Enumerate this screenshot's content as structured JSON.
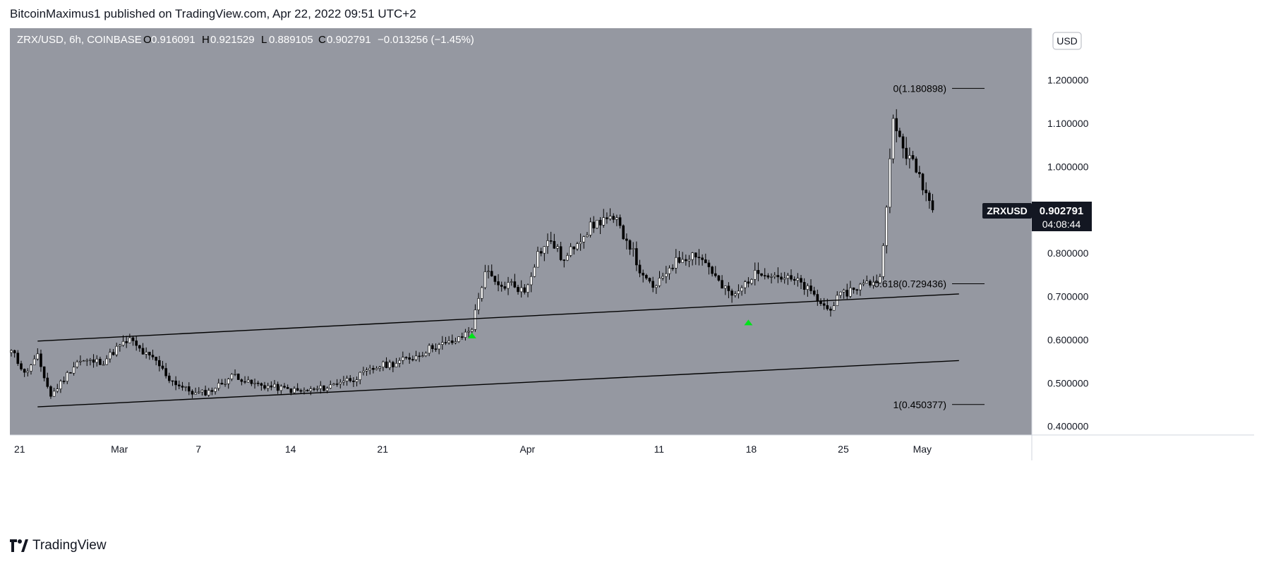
{
  "header": {
    "text": "BitcoinMaximus1 published on TradingView.com, Apr 22, 2022 09:51 UTC+2"
  },
  "legend": {
    "symbol": "ZRX/USD, 6h, COINBASE",
    "o_label": "O",
    "o_value": "0.916091",
    "h_label": "H",
    "h_value": "0.921529",
    "l_label": "L",
    "l_value": "0.889105",
    "c_label": "C",
    "c_value": "0.902791",
    "change": "−0.013256 (−1.45%)"
  },
  "currency_button": "USD",
  "price_tag": {
    "symbol": "ZRXUSD",
    "price": "0.902791",
    "countdown": "04:08:44"
  },
  "footer": {
    "brand": "TradingView"
  },
  "colors": {
    "plot_bg": "#9598a1",
    "axis_bg": "#ffffff",
    "candle_up": "#ffffff",
    "candle_down": "#000000",
    "trendline": "#000000",
    "arrow": "#00e21a",
    "tag_bg": "#131722"
  },
  "chart_data": {
    "type": "candlestick",
    "title": "ZRX/USD, 6h, COINBASE",
    "ylim": [
      0.38,
      1.32
    ],
    "y_ticks": [
      "1.200000",
      "1.100000",
      "1.000000",
      "0.800000",
      "0.700000",
      "0.600000",
      "0.500000",
      "0.400000"
    ],
    "x_ticks": [
      "21",
      "Mar",
      "7",
      "14",
      "21",
      "Apr",
      "11",
      "18",
      "25",
      "May"
    ],
    "fib_levels": [
      {
        "label": "0(1.180898)",
        "value": 1.180898
      },
      {
        "label": "0.618(0.729436)",
        "value": 0.729436
      },
      {
        "label": "1(0.450377)",
        "value": 0.450377
      }
    ],
    "channel": {
      "upper": {
        "start": [
          "Feb 23",
          0.597
        ],
        "end": [
          "May 4",
          0.706
        ]
      },
      "lower": {
        "start": [
          "Feb 23",
          0.445
        ],
        "end": [
          "May 4",
          0.552
        ]
      }
    },
    "arrows": [
      {
        "x": "Mar 28",
        "price": 0.61
      },
      {
        "x": "Apr 18",
        "price": 0.64
      }
    ],
    "price_path": [
      [
        "Feb 20",
        0.57
      ],
      [
        "Feb 21",
        0.58
      ],
      [
        "Feb 22",
        0.52
      ],
      [
        "Feb 23",
        0.56
      ],
      [
        "Feb 24",
        0.47
      ],
      [
        "Feb 25",
        0.51
      ],
      [
        "Feb 26",
        0.55
      ],
      [
        "Feb 28",
        0.55
      ],
      [
        "Mar 1",
        0.58
      ],
      [
        "Mar 2",
        0.6
      ],
      [
        "Mar 3",
        0.57
      ],
      [
        "Mar 4",
        0.55
      ],
      [
        "Mar 5",
        0.51
      ],
      [
        "Mar 6",
        0.49
      ],
      [
        "Mar 7",
        0.475
      ],
      [
        "Mar 8",
        0.48
      ],
      [
        "Mar 9",
        0.5
      ],
      [
        "Mar 10",
        0.52
      ],
      [
        "Mar 11",
        0.5
      ],
      [
        "Mar 12",
        0.495
      ],
      [
        "Mar 13",
        0.49
      ],
      [
        "Mar 14",
        0.485
      ],
      [
        "Mar 15",
        0.48
      ],
      [
        "Mar 16",
        0.485
      ],
      [
        "Mar 17",
        0.49
      ],
      [
        "Mar 18",
        0.505
      ],
      [
        "Mar 19",
        0.51
      ],
      [
        "Mar 20",
        0.525
      ],
      [
        "Mar 21",
        0.54
      ],
      [
        "Mar 22",
        0.545
      ],
      [
        "Mar 23",
        0.555
      ],
      [
        "Mar 24",
        0.565
      ],
      [
        "Mar 25",
        0.585
      ],
      [
        "Mar 26",
        0.59
      ],
      [
        "Mar 27",
        0.6
      ],
      [
        "Mar 28",
        0.63
      ],
      [
        "Mar 29",
        0.76
      ],
      [
        "Mar 30",
        0.72
      ],
      [
        "Mar 31",
        0.73
      ],
      [
        "Apr 1",
        0.71
      ],
      [
        "Apr 2",
        0.8
      ],
      [
        "Apr 3",
        0.83
      ],
      [
        "Apr 4",
        0.78
      ],
      [
        "Apr 5",
        0.83
      ],
      [
        "Apr 6",
        0.86
      ],
      [
        "Apr 7",
        0.88
      ],
      [
        "Apr 8",
        0.87
      ],
      [
        "Apr 9",
        0.82
      ],
      [
        "Apr 10",
        0.74
      ],
      [
        "Apr 11",
        0.72
      ],
      [
        "Apr 12",
        0.77
      ],
      [
        "Apr 13",
        0.79
      ],
      [
        "Apr 14",
        0.8
      ],
      [
        "Apr 15",
        0.77
      ],
      [
        "Apr 16",
        0.72
      ],
      [
        "Apr 17",
        0.7
      ],
      [
        "Apr 18",
        0.74
      ],
      [
        "Apr 19",
        0.76
      ],
      [
        "Apr 20",
        0.75
      ],
      [
        "Apr 21",
        0.74
      ],
      [
        "Apr 22",
        0.73
      ],
      [
        "Apr 23",
        0.7
      ],
      [
        "Apr 24",
        0.67
      ],
      [
        "Apr 25",
        0.7
      ],
      [
        "Apr 26",
        0.72
      ],
      [
        "Apr 27",
        0.73
      ],
      [
        "Apr 28",
        0.74
      ],
      [
        "Apr 29",
        1.1
      ],
      [
        "Apr 30",
        1.03
      ],
      [
        "May 1",
        0.98
      ],
      [
        "May 2",
        0.9
      ]
    ]
  }
}
